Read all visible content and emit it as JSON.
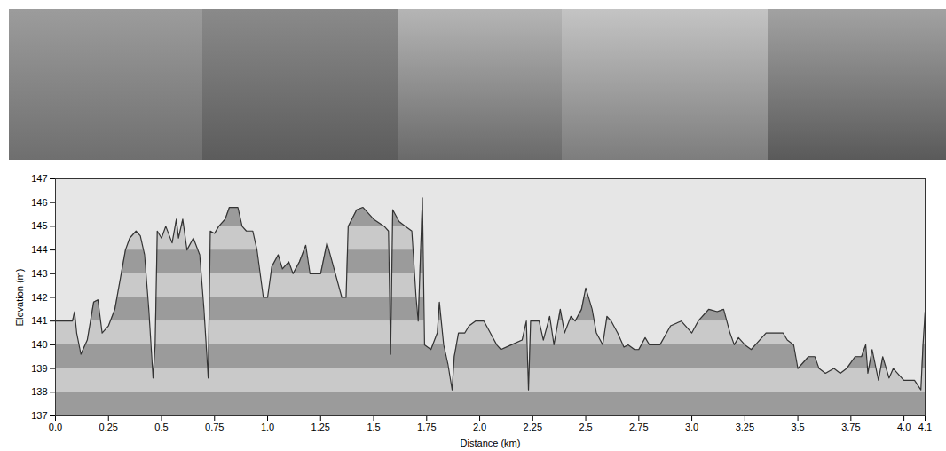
{
  "chart_data": {
    "type": "area",
    "xlabel": "Distance (km)",
    "ylabel": "Elevation (m)",
    "color": "#333333",
    "xlim": [
      0,
      4.1
    ],
    "xticks": [
      {
        "value": 0,
        "label": "0.0"
      },
      0.25,
      0.5,
      0.75,
      {
        "value": 1,
        "label": "1.0"
      },
      1.25,
      1.5,
      1.75,
      {
        "value": 2,
        "label": "2.0"
      },
      2.25,
      2.5,
      2.75,
      {
        "value": 3,
        "label": "3.0"
      },
      3.25,
      3.5,
      3.75,
      {
        "value": 4,
        "label": "4.0"
      },
      4.1
    ],
    "ylim": [
      137,
      147
    ],
    "yticks": [
      137,
      138,
      139,
      140,
      141,
      142,
      143,
      144,
      145,
      146,
      147
    ],
    "x": [
      0,
      0.08,
      0.09,
      0.1,
      0.12,
      0.15,
      0.18,
      0.2,
      0.22,
      0.25,
      0.28,
      0.3,
      0.33,
      0.35,
      0.38,
      0.4,
      0.42,
      0.44,
      0.46,
      0.47,
      0.48,
      0.5,
      0.52,
      0.55,
      0.57,
      0.58,
      0.6,
      0.62,
      0.65,
      0.68,
      0.7,
      0.72,
      0.73,
      0.75,
      0.77,
      0.8,
      0.82,
      0.86,
      0.88,
      0.9,
      0.93,
      0.95,
      0.98,
      1.0,
      1.02,
      1.05,
      1.07,
      1.1,
      1.12,
      1.15,
      1.18,
      1.2,
      1.25,
      1.28,
      1.35,
      1.37,
      1.38,
      1.42,
      1.45,
      1.5,
      1.55,
      1.57,
      1.58,
      1.59,
      1.62,
      1.65,
      1.68,
      1.7,
      1.71,
      1.73,
      1.74,
      1.77,
      1.8,
      1.81,
      1.83,
      1.85,
      1.87,
      1.88,
      1.9,
      1.93,
      1.95,
      1.98,
      2.02,
      2.05,
      2.08,
      2.1,
      2.15,
      2.2,
      2.22,
      2.23,
      2.24,
      2.28,
      2.3,
      2.33,
      2.35,
      2.38,
      2.4,
      2.43,
      2.45,
      2.48,
      2.5,
      2.53,
      2.55,
      2.58,
      2.6,
      2.62,
      2.65,
      2.68,
      2.7,
      2.73,
      2.75,
      2.78,
      2.8,
      2.85,
      2.9,
      2.95,
      3.0,
      3.03,
      3.08,
      3.12,
      3.15,
      3.18,
      3.2,
      3.22,
      3.25,
      3.28,
      3.3,
      3.35,
      3.4,
      3.43,
      3.45,
      3.48,
      3.5,
      3.55,
      3.58,
      3.6,
      3.63,
      3.67,
      3.7,
      3.73,
      3.77,
      3.8,
      3.82,
      3.83,
      3.85,
      3.88,
      3.9,
      3.93,
      3.95,
      4.0,
      4.05,
      4.08,
      4.09,
      4.1
    ],
    "values": [
      141,
      141,
      141.4,
      140.5,
      139.6,
      140.2,
      141.8,
      141.9,
      140.5,
      140.8,
      141.5,
      142.5,
      144.0,
      144.5,
      144.8,
      144.6,
      143.8,
      141.5,
      138.6,
      140,
      144.8,
      144.5,
      145.0,
      144.3,
      145.3,
      144.5,
      145.3,
      144.0,
      144.5,
      143.8,
      141.5,
      138.6,
      144.8,
      144.7,
      145.0,
      145.3,
      145.8,
      145.8,
      145.0,
      144.8,
      144.8,
      144.0,
      142.0,
      142.0,
      143.3,
      143.8,
      143.2,
      143.5,
      143.0,
      143.5,
      144.2,
      143.0,
      143.0,
      144.3,
      142.0,
      142.0,
      145.0,
      145.7,
      145.8,
      145.3,
      145.0,
      144.8,
      139.6,
      145.7,
      145.2,
      145.0,
      144.8,
      142.0,
      141.0,
      146.2,
      140.0,
      139.8,
      140.5,
      141.8,
      140.0,
      139.2,
      138.1,
      139.5,
      140.5,
      140.5,
      140.8,
      141.0,
      141.0,
      140.5,
      140.0,
      139.8,
      140.0,
      140.2,
      141.0,
      138.1,
      141.0,
      141.0,
      140.2,
      141.2,
      140.0,
      141.5,
      140.5,
      141.2,
      141.0,
      141.5,
      142.4,
      141.5,
      140.5,
      140.0,
      141.2,
      141.0,
      140.5,
      139.9,
      140.0,
      139.8,
      139.8,
      140.3,
      140.0,
      140.0,
      140.8,
      141.0,
      140.5,
      141.0,
      141.5,
      141.4,
      141.5,
      140.5,
      140.0,
      140.3,
      140.0,
      139.8,
      140.0,
      140.5,
      140.5,
      140.5,
      140.2,
      140.0,
      139.0,
      139.5,
      139.5,
      139.0,
      138.8,
      139.0,
      138.8,
      139.0,
      139.5,
      139.5,
      140.0,
      138.8,
      139.8,
      138.5,
      139.5,
      138.6,
      139.0,
      138.5,
      138.5,
      138.1,
      140.0,
      141.4
    ]
  }
}
